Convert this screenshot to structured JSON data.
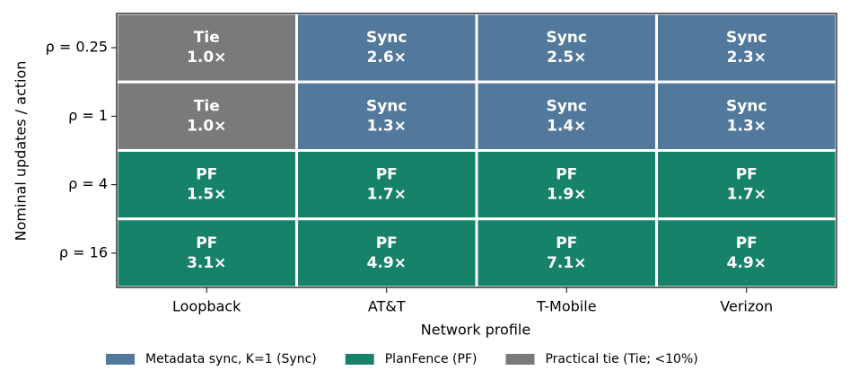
{
  "chart_data": {
    "type": "heatmap",
    "xlabel": "Network profile",
    "ylabel": "Nominal updates / action",
    "x_categories": [
      "Loopback",
      "AT&T",
      "T-Mobile",
      "Verizon"
    ],
    "y_categories": [
      "ρ = 0.25",
      "ρ = 1",
      "ρ = 4",
      "ρ = 16"
    ],
    "series": [
      {
        "name": "Metadata sync, K=1 (Sync)",
        "short": "Sync",
        "color": "#52799b"
      },
      {
        "name": "PlanFence (PF)",
        "short": "PF",
        "color": "#17826a"
      },
      {
        "name": "Practical tie (Tie; <10%)",
        "short": "Tie",
        "color": "#7a7a7a"
      }
    ],
    "rows": [
      {
        "winners": [
          "Tie",
          "Sync",
          "Sync",
          "Sync"
        ],
        "values": [
          1.0,
          2.6,
          2.5,
          2.3
        ],
        "value_labels": [
          "1.0×",
          "2.6×",
          "2.5×",
          "2.3×"
        ]
      },
      {
        "winners": [
          "Tie",
          "Sync",
          "Sync",
          "Sync"
        ],
        "values": [
          1.0,
          1.3,
          1.4,
          1.3
        ],
        "value_labels": [
          "1.0×",
          "1.3×",
          "1.4×",
          "1.3×"
        ]
      },
      {
        "winners": [
          "PF",
          "PF",
          "PF",
          "PF"
        ],
        "values": [
          1.5,
          1.7,
          1.9,
          1.7
        ],
        "value_labels": [
          "1.5×",
          "1.7×",
          "1.9×",
          "1.7×"
        ]
      },
      {
        "winners": [
          "PF",
          "PF",
          "PF",
          "PF"
        ],
        "values": [
          3.1,
          4.9,
          7.1,
          4.9
        ],
        "value_labels": [
          "3.1×",
          "4.9×",
          "7.1×",
          "4.9×"
        ]
      }
    ],
    "legend": "bottom"
  }
}
